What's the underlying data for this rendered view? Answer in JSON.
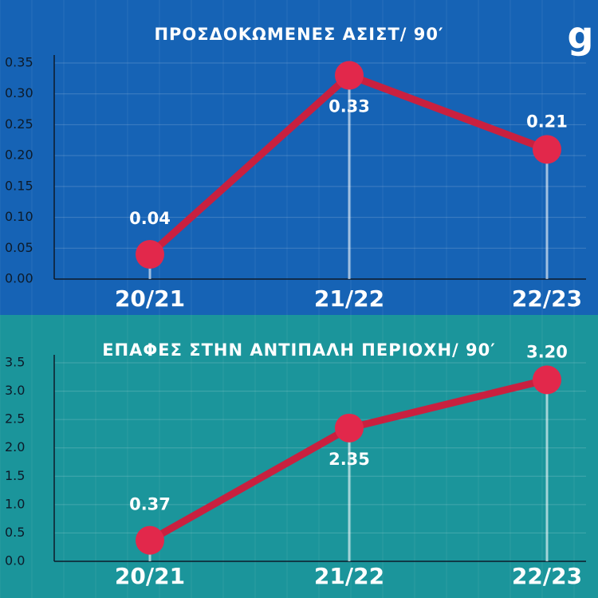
{
  "chart_data": [
    {
      "type": "line",
      "title": "ΠΡΟΣΔΟΚΩΜΕΝΕΣ ΑΣΙΣΤ/ 90′",
      "categories": [
        "20/21",
        "21/22",
        "22/23"
      ],
      "values": [
        0.04,
        0.33,
        0.21
      ],
      "color": "#c9203f",
      "background": "#1663b5",
      "grid": true,
      "ylim": [
        0,
        0.35
      ],
      "yticks": [
        {
          "value": 0,
          "label": "0.00"
        },
        0.05,
        {
          "value": 0.1,
          "label": "0.10"
        },
        0.15,
        {
          "value": 0.2,
          "label": "0.20"
        },
        0.25,
        {
          "value": 0.3,
          "label": "0.30"
        },
        0.35
      ]
    },
    {
      "type": "line",
      "title": "ΕΠΑΦΕΣ ΣΤΗΝ ΑΝΤΙΠΑΛΗ ΠΕΡΙΟΧΗ/ 90′",
      "categories": [
        "20/21",
        "21/22",
        "22/23"
      ],
      "values": [
        0.37,
        2.35,
        3.2
      ],
      "value_labels": [
        "0.37",
        "2.35",
        "3.20"
      ],
      "color": "#c9203f",
      "background": "#1b959b",
      "grid": true,
      "ylim": [
        0,
        3.5
      ],
      "yticks": [
        {
          "value": 0,
          "label": "0.0"
        },
        0.5,
        {
          "value": 1,
          "label": "1.0"
        },
        1.5,
        {
          "value": 2,
          "label": "2.0"
        },
        2.5,
        {
          "value": 3,
          "label": "3.0"
        },
        3.5
      ]
    }
  ]
}
